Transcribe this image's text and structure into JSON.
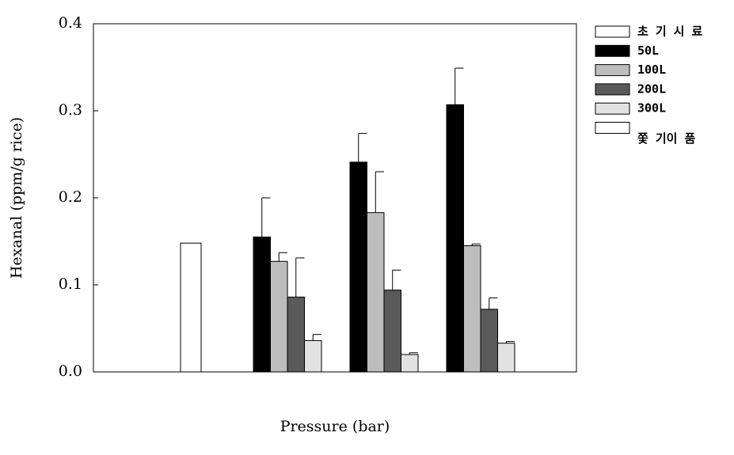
{
  "chart_data": {
    "type": "bar",
    "ylabel": "Hexanal (ppm/g rice)",
    "xlabel": "Pressure (bar)",
    "categories": [
      null,
      null,
      null,
      null
    ],
    "series": [
      {
        "name": "초 기 시 료",
        "color": "#ffffff",
        "values": [
          0.148,
          null,
          null,
          null
        ],
        "errors": [
          null,
          null,
          null,
          null
        ]
      },
      {
        "name": "50L",
        "color": "#000000",
        "values": [
          null,
          0.155,
          0.241,
          0.307
        ],
        "errors": [
          null,
          0.045,
          0.033,
          0.042
        ]
      },
      {
        "name": "100L",
        "color": "#bdbdbd",
        "values": [
          null,
          0.127,
          0.183,
          0.145
        ],
        "errors": [
          null,
          0.01,
          0.047,
          0.002
        ]
      },
      {
        "name": "200L",
        "color": "#5a5a5a",
        "values": [
          null,
          0.086,
          0.094,
          0.072
        ],
        "errors": [
          null,
          0.045,
          0.023,
          0.013
        ]
      },
      {
        "name": "300L",
        "color": "#e2e2e2",
        "values": [
          null,
          0.036,
          0.02,
          0.033
        ],
        "errors": [
          null,
          0.007,
          0.002,
          0.002
        ]
      },
      {
        "name": "쫓 기이 품",
        "color": "#ffffff",
        "values": [
          null,
          null,
          null,
          null
        ],
        "errors": [
          null,
          null,
          null,
          null
        ]
      }
    ],
    "ylim": [
      0,
      0.4
    ],
    "yticks": [
      {
        "value": 0,
        "label": "0.0"
      },
      0.1,
      0.2,
      0.3,
      0.4
    ]
  }
}
